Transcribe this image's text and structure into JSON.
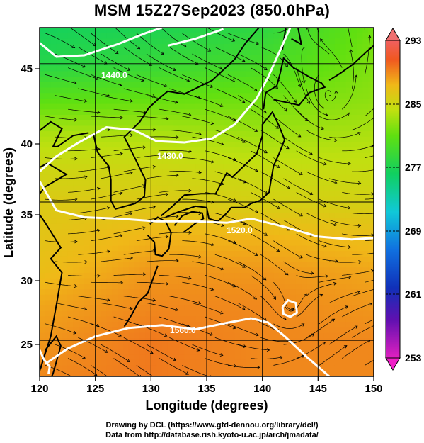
{
  "title": "MSM 15Z27Sep2023 (850.0hPa)",
  "x_axis": {
    "label": "Longitude (degrees)",
    "ticks": [
      "120",
      "125",
      "130",
      "135",
      "140",
      "145",
      "150"
    ]
  },
  "y_axis": {
    "label": "Latitude  (degrees)",
    "ticks": [
      "25",
      "30",
      "35",
      "40",
      "45"
    ]
  },
  "colorbar": {
    "labels": [
      "293",
      "285",
      "277",
      "269",
      "261",
      "253"
    ]
  },
  "contour_labels": [
    "1440.0",
    "1480.0",
    "1520.0",
    "1560.0"
  ],
  "credits": {
    "line1": "Drawing by DCL (https://www.gfd-dennou.org/library/dcl/)",
    "line2": "Data from http://database.rish.kyoto-u.ac.jp/arch/jmadata/"
  },
  "chart_data": {
    "type": "heatmap",
    "title": "MSM 15Z27Sep2023 (850.0hPa)",
    "xlabel": "Longitude (degrees)",
    "ylabel": "Latitude  (degrees)",
    "xlim": [
      120,
      150
    ],
    "ylim": [
      22.4,
      47.6
    ],
    "xticks": [
      120,
      125,
      130,
      135,
      140,
      145,
      150
    ],
    "yticks": [
      25,
      30,
      35,
      40,
      45
    ],
    "colorbar": {
      "min": 253,
      "max": 293,
      "ticks": [
        253,
        261,
        269,
        277,
        285,
        293
      ]
    },
    "temperature_field_approx": {
      "lat": [
        47.6,
        45,
        42.5,
        40,
        37.5,
        35,
        32.5,
        30,
        27.5,
        25,
        22.4
      ],
      "values_by_lon": {
        "120": [
          276.5,
          277.5,
          280.5,
          283.5,
          285.0,
          286.0,
          286.5,
          287.0,
          288.0,
          288.5,
          289.0
        ],
        "130": [
          277.0,
          278.5,
          281.0,
          283.5,
          285.0,
          286.0,
          287.5,
          288.5,
          289.0,
          289.5,
          289.5
        ],
        "140": [
          278.0,
          279.5,
          281.5,
          283.0,
          284.5,
          285.5,
          287.5,
          288.5,
          289.0,
          289.0,
          289.0
        ],
        "150": [
          281.5,
          282.0,
          282.5,
          283.5,
          284.5,
          285.5,
          287.0,
          288.0,
          288.5,
          289.0,
          289.0
        ]
      }
    },
    "geopotential_contours": [
      {
        "value": 1440.0,
        "label_lon": 136.7,
        "label_lat": 46.2
      },
      {
        "value": 1480.0,
        "label_lon": 134.0,
        "label_lat": 39.1
      },
      {
        "value": 1520.0,
        "label_lon": 139.7,
        "label_lat": 33.8
      },
      {
        "value": 1560.0,
        "label_lon": 134.4,
        "label_lat": 25.8
      }
    ]
  }
}
